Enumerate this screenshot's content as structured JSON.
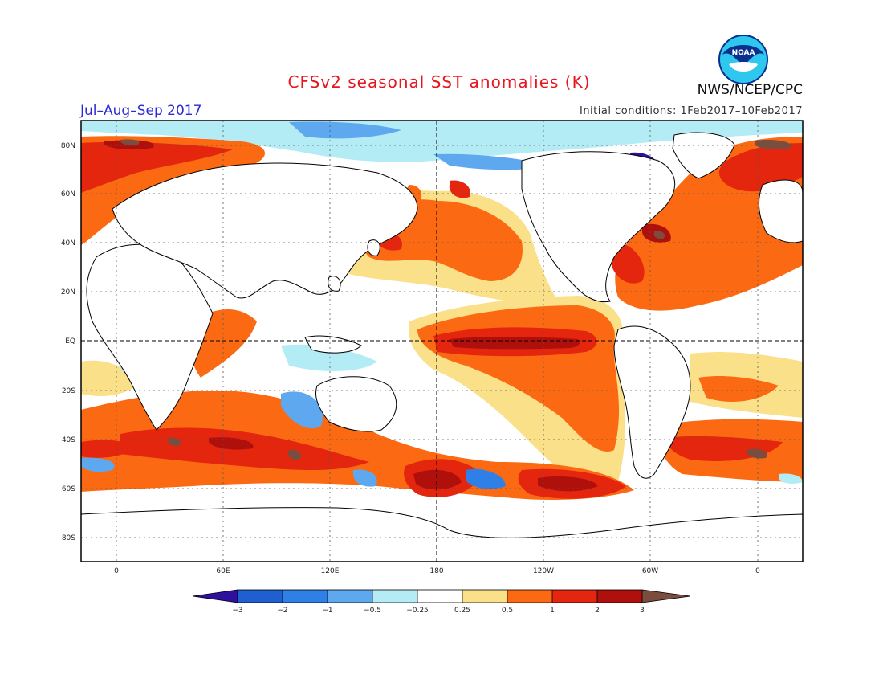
{
  "header": {
    "title": "CFSv2 seasonal SST anomalies (K)",
    "period": "Jul–Aug–Sep 2017",
    "initial_conditions": "Initial conditions: 1Feb2017–10Feb2017",
    "agency": "NWS/NCEP/CPC",
    "logo_text": "NOAA"
  },
  "map": {
    "lat_labels": [
      "80N",
      "60N",
      "40N",
      "20N",
      "EQ",
      "20S",
      "40S",
      "60S",
      "80S"
    ],
    "lon_labels": [
      "0",
      "60E",
      "120E",
      "180",
      "120W",
      "60W",
      "0"
    ]
  },
  "colorbar": {
    "labels": [
      "−3",
      "−2",
      "−1",
      "−0.5",
      "−0.25",
      "0.25",
      "0.5",
      "1",
      "2",
      "3"
    ],
    "colors": [
      "#2e0f9e",
      "#1f5fd0",
      "#2f80e6",
      "#5ea8f0",
      "#b4ecf6",
      "#ffffff",
      "#fbe08a",
      "#fb6a12",
      "#e4260e",
      "#b0100c",
      "#7a4d3f"
    ]
  }
}
